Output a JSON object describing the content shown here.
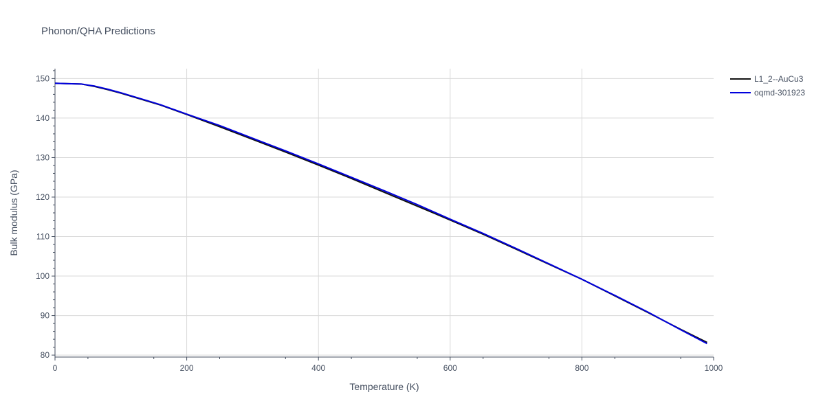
{
  "chart_data": {
    "type": "line",
    "title": "Phonon/QHA Predictions",
    "xlabel": "Temperature (K)",
    "ylabel": "Bulk modulus (GPa)",
    "xlim": [
      0,
      1000
    ],
    "ylim": [
      79.5,
      152.5
    ],
    "xticks": [
      0,
      200,
      400,
      600,
      800,
      1000
    ],
    "yticks": [
      80,
      90,
      100,
      110,
      120,
      130,
      140,
      150
    ],
    "grid": true,
    "legend_position": "top-right",
    "series": [
      {
        "name": "L1_2--AuCu3",
        "color": "#111111",
        "x": [
          0,
          20,
          40,
          60,
          80,
          100,
          120,
          140,
          160,
          180,
          200,
          250,
          300,
          350,
          400,
          450,
          500,
          550,
          600,
          650,
          700,
          750,
          800,
          850,
          900,
          950,
          990
        ],
        "y": [
          148.8,
          148.7,
          148.6,
          148.0,
          147.2,
          146.3,
          145.3,
          144.3,
          143.3,
          142.1,
          140.9,
          137.8,
          134.6,
          131.4,
          128.1,
          124.7,
          121.2,
          117.7,
          114.2,
          110.6,
          106.8,
          103.0,
          99.2,
          95.0,
          90.8,
          86.5,
          83.2
        ]
      },
      {
        "name": "oqmd-301923",
        "color": "#0000dd",
        "x": [
          0,
          20,
          40,
          60,
          80,
          100,
          120,
          140,
          160,
          180,
          200,
          250,
          300,
          350,
          400,
          450,
          500,
          550,
          600,
          650,
          700,
          750,
          800,
          850,
          900,
          950,
          990
        ],
        "y": [
          148.8,
          148.7,
          148.6,
          148.1,
          147.3,
          146.4,
          145.4,
          144.4,
          143.4,
          142.2,
          141.0,
          138.1,
          134.9,
          131.7,
          128.4,
          125.0,
          121.6,
          118.1,
          114.4,
          110.8,
          107.0,
          103.1,
          99.2,
          95.1,
          90.9,
          86.4,
          82.9
        ]
      }
    ]
  }
}
